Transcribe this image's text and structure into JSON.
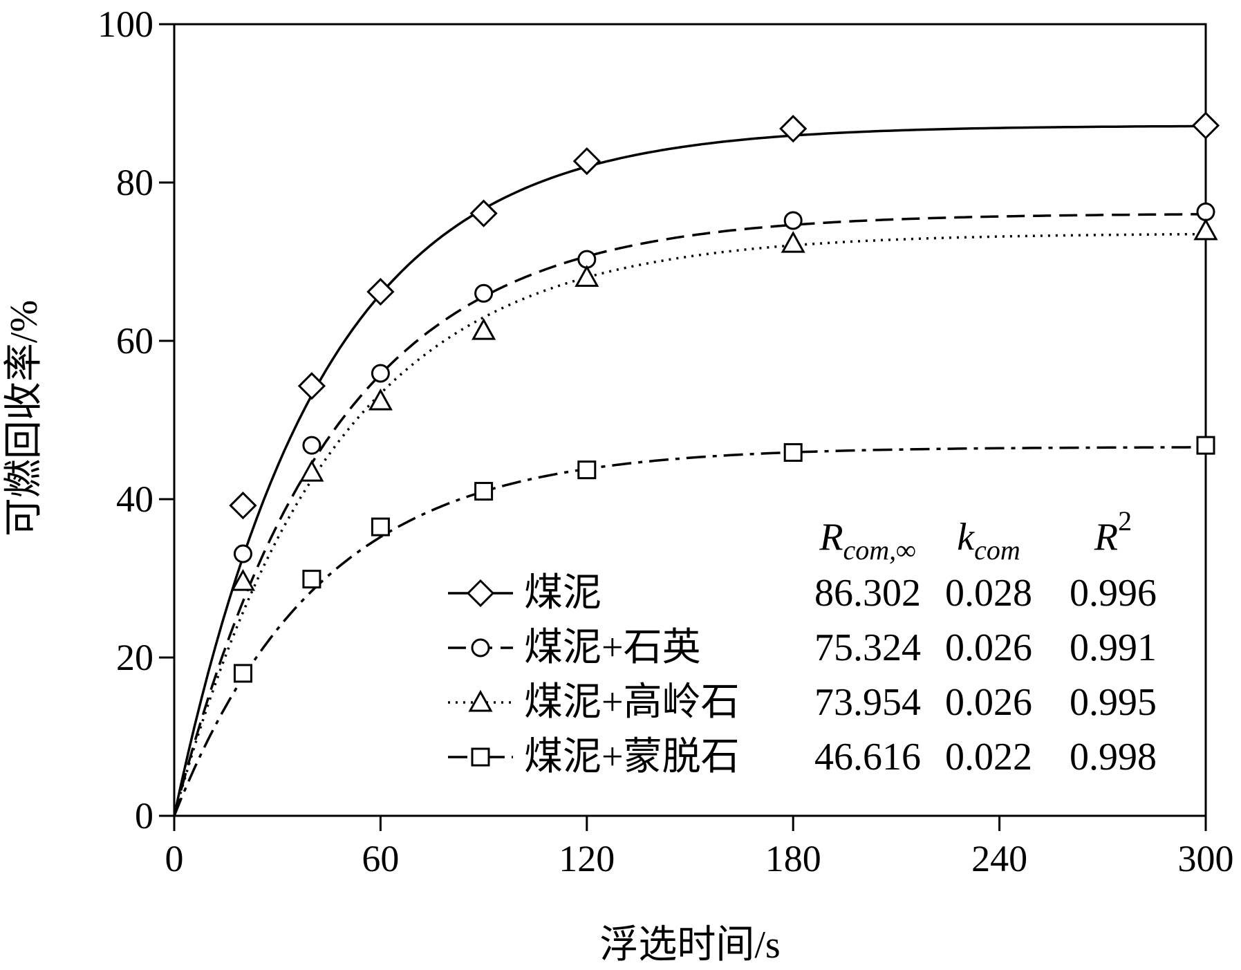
{
  "chart_data": {
    "type": "line",
    "xlabel": "浮选时间/s",
    "ylabel": "可燃回收率/%",
    "xlim": [
      0,
      300
    ],
    "ylim": [
      0,
      100
    ],
    "xticks": [
      0,
      60,
      120,
      180,
      240,
      300
    ],
    "yticks": [
      0,
      20,
      40,
      60,
      80,
      100
    ],
    "grid": false,
    "legend_position": "bottom-right",
    "table_headers": {
      "rcom": {
        "main": "R",
        "sub": "com,∞"
      },
      "kcom": {
        "main": "k",
        "sub": "com"
      },
      "r2": {
        "main": "R",
        "sup": "2"
      }
    },
    "series": [
      {
        "name": "煤泥",
        "marker": "diamond",
        "line_style": "solid",
        "x": [
          0,
          20,
          40,
          60,
          90,
          120,
          180,
          300
        ],
        "y": [
          0,
          39.2,
          54.3,
          66.2,
          76.1,
          82.7,
          86.8,
          87.2
        ],
        "fit": {
          "R_inf": 87.2,
          "k": 0.0235
        },
        "table": {
          "rcom": "86.302",
          "kcom": "0.028",
          "r2": "0.996"
        }
      },
      {
        "name": "煤泥+石英",
        "marker": "circle",
        "line_style": "dashed",
        "x": [
          0,
          20,
          40,
          60,
          90,
          120,
          180,
          300
        ],
        "y": [
          0,
          33.1,
          46.8,
          55.9,
          66.0,
          70.3,
          75.2,
          76.3
        ],
        "fit": {
          "R_inf": 76.1,
          "k": 0.022
        },
        "table": {
          "rcom": "75.324",
          "kcom": "0.026",
          "r2": "0.991"
        }
      },
      {
        "name": "煤泥+高岭石",
        "marker": "triangle",
        "line_style": "dotted",
        "x": [
          0,
          20,
          40,
          60,
          90,
          120,
          180,
          300
        ],
        "y": [
          0,
          29.6,
          43.4,
          52.4,
          61.3,
          68.0,
          72.3,
          73.9
        ],
        "fit": {
          "R_inf": 73.6,
          "k": 0.0215
        },
        "table": {
          "rcom": "73.954",
          "kcom": "0.026",
          "r2": "0.995"
        }
      },
      {
        "name": "煤泥+蒙脱石",
        "marker": "square",
        "line_style": "dashdot",
        "x": [
          0,
          20,
          40,
          60,
          90,
          120,
          180,
          300
        ],
        "y": [
          0,
          18.0,
          29.9,
          36.5,
          41.0,
          43.7,
          45.9,
          46.8
        ],
        "fit": {
          "R_inf": 46.6,
          "k": 0.0235
        },
        "table": {
          "rcom": "46.616",
          "kcom": "0.022",
          "r2": "0.998"
        }
      }
    ]
  }
}
